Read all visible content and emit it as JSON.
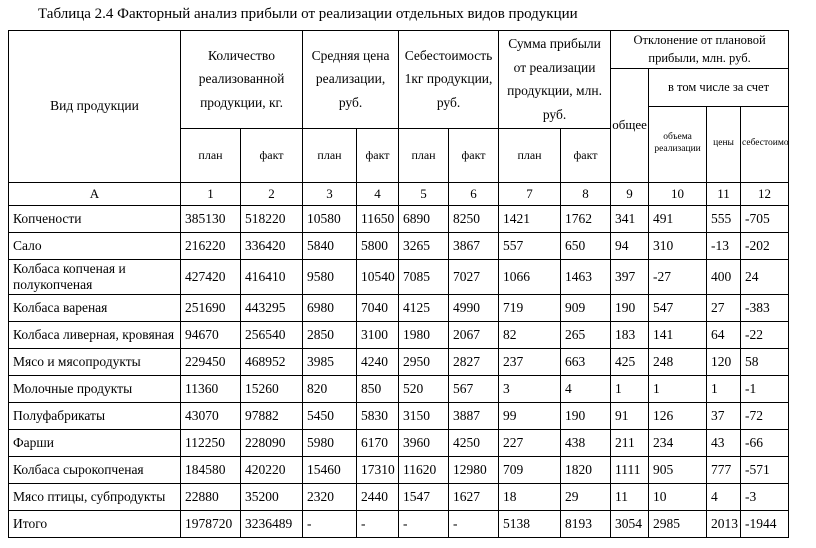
{
  "title": "Таблица 2.4 Факторный анализ прибыли от реализации отдельных видов продукции",
  "table": {
    "header": {
      "product_column": "Вид продукции",
      "groups": [
        {
          "label": "Количество реализованной продукции, кг."
        },
        {
          "label": "Средняя цена реализации, руб."
        },
        {
          "label": "Себестоимость 1кг продукции, руб."
        },
        {
          "label": "Сумма прибыли от реализации продукции, млн. руб."
        }
      ],
      "plan_label": "план",
      "fact_label": "факт",
      "deviation": {
        "label": "Отклонение от плановой прибыли, млн. руб.",
        "total_label": "общее",
        "including_label": "в том числе за счет",
        "sub_labels": [
          "объема реализации",
          "цены",
          "себестоимости"
        ]
      },
      "index_row": [
        "А",
        "1",
        "2",
        "3",
        "4",
        "5",
        "6",
        "7",
        "8",
        "9",
        "10",
        "11",
        "12"
      ]
    },
    "rows": [
      {
        "name": "Копчености",
        "values": [
          "385130",
          "518220",
          "10580",
          "11650",
          "6890",
          "8250",
          "1421",
          "1762",
          "341",
          "491",
          "555",
          "-705"
        ]
      },
      {
        "name": "Сало",
        "values": [
          "216220",
          "336420",
          "5840",
          "5800",
          "3265",
          "3867",
          "557",
          "650",
          "94",
          "310",
          "-13",
          "-202"
        ]
      },
      {
        "name": "Колбаса копченая и полукопченая",
        "values": [
          "427420",
          "416410",
          "9580",
          "10540",
          "7085",
          "7027",
          "1066",
          "1463",
          "397",
          "-27",
          "400",
          "24"
        ]
      },
      {
        "name": "Колбаса вареная",
        "values": [
          "251690",
          "443295",
          "6980",
          "7040",
          "4125",
          "4990",
          "719",
          "909",
          "190",
          "547",
          "27",
          "-383"
        ]
      },
      {
        "name": "Колбаса ливерная, кровяная",
        "values": [
          "94670",
          "256540",
          "2850",
          "3100",
          "1980",
          "2067",
          "82",
          "265",
          "183",
          "141",
          "64",
          "-22"
        ]
      },
      {
        "name": "Мясо и мясопродукты",
        "values": [
          "229450",
          "468952",
          "3985",
          "4240",
          "2950",
          "2827",
          "237",
          "663",
          "425",
          "248",
          "120",
          "58"
        ]
      },
      {
        "name": "Молочные продукты",
        "values": [
          "11360",
          "15260",
          "820",
          "850",
          "520",
          "567",
          "3",
          "4",
          "1",
          "1",
          "1",
          "-1"
        ]
      },
      {
        "name": "Полуфабрикаты",
        "values": [
          "43070",
          "97882",
          "5450",
          "5830",
          "3150",
          "3887",
          "99",
          "190",
          "91",
          "126",
          "37",
          "-72"
        ]
      },
      {
        "name": "Фарши",
        "values": [
          "112250",
          "228090",
          "5980",
          "6170",
          "3960",
          "4250",
          "227",
          "438",
          "211",
          "234",
          "43",
          "-66"
        ]
      },
      {
        "name": "Колбаса сырокопченая",
        "values": [
          "184580",
          "420220",
          "15460",
          "17310",
          "11620",
          "12980",
          "709",
          "1820",
          "1111",
          "905",
          "777",
          "-571"
        ]
      },
      {
        "name": "Мясо птицы, субпродукты",
        "values": [
          "22880",
          "35200",
          "2320",
          "2440",
          "1547",
          "1627",
          "18",
          "29",
          "11",
          "10",
          "4",
          "-3"
        ]
      },
      {
        "name": "Итого",
        "values": [
          "1978720",
          "3236489",
          "-",
          "-",
          "-",
          "-",
          "5138",
          "8193",
          "3054",
          "2985",
          "2013",
          "-1944"
        ]
      }
    ]
  }
}
